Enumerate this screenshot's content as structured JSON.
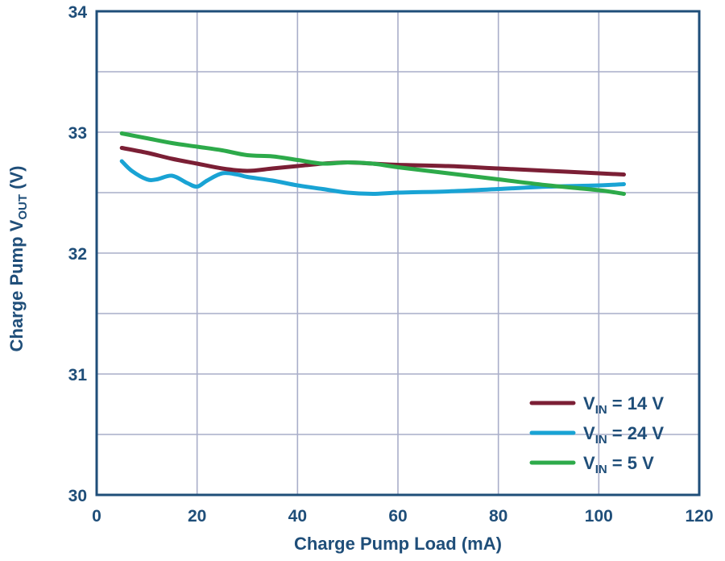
{
  "chart_data": {
    "type": "line",
    "title": "",
    "xlabel": "Charge Pump Load (mA)",
    "ylabel": {
      "main": "Charge Pump V",
      "sub": "OUT",
      "unit": " (V)"
    },
    "xlim": [
      0,
      120
    ],
    "ylim": [
      30,
      34
    ],
    "xticks": [
      0,
      20,
      40,
      60,
      80,
      100,
      120
    ],
    "yticks": [
      30,
      31,
      32,
      33,
      34
    ],
    "ygrid": [
      30,
      30.5,
      31,
      31.5,
      32,
      32.5,
      33,
      33.5,
      34
    ],
    "grid": true,
    "legend_position": "bottom-right",
    "series": [
      {
        "name": "V_IN = 14 V",
        "label": {
          "main": "V",
          "sub": "IN",
          "rest": " = 14 V"
        },
        "color": "#7b1f35",
        "x": [
          5,
          10,
          15,
          20,
          25,
          30,
          35,
          40,
          45,
          50,
          55,
          60,
          70,
          80,
          90,
          100,
          105
        ],
        "y": [
          32.87,
          32.83,
          32.78,
          32.74,
          32.7,
          32.68,
          32.7,
          32.72,
          32.74,
          32.75,
          32.74,
          32.73,
          32.72,
          32.7,
          32.68,
          32.66,
          32.65
        ]
      },
      {
        "name": "V_IN = 24 V",
        "label": {
          "main": "V",
          "sub": "IN",
          "rest": " = 24 V"
        },
        "color": "#19a3d4",
        "x": [
          5,
          7,
          10,
          12,
          15,
          18,
          20,
          22,
          25,
          28,
          30,
          35,
          40,
          45,
          50,
          55,
          60,
          70,
          80,
          90,
          100,
          105
        ],
        "y": [
          32.76,
          32.68,
          32.61,
          32.61,
          32.64,
          32.58,
          32.55,
          32.6,
          32.66,
          32.65,
          32.63,
          32.6,
          32.56,
          32.53,
          32.5,
          32.49,
          32.5,
          32.51,
          32.53,
          32.55,
          32.56,
          32.57
        ]
      },
      {
        "name": "V_IN = 5 V",
        "label": {
          "main": "V",
          "sub": "IN",
          "rest": " = 5 V"
        },
        "color": "#2daa4a",
        "x": [
          5,
          10,
          15,
          20,
          25,
          30,
          35,
          40,
          45,
          50,
          55,
          60,
          70,
          80,
          90,
          100,
          105
        ],
        "y": [
          32.99,
          32.95,
          32.91,
          32.88,
          32.85,
          32.81,
          32.8,
          32.77,
          32.74,
          32.75,
          32.74,
          32.71,
          32.66,
          32.61,
          32.56,
          32.52,
          32.49
        ]
      }
    ]
  }
}
